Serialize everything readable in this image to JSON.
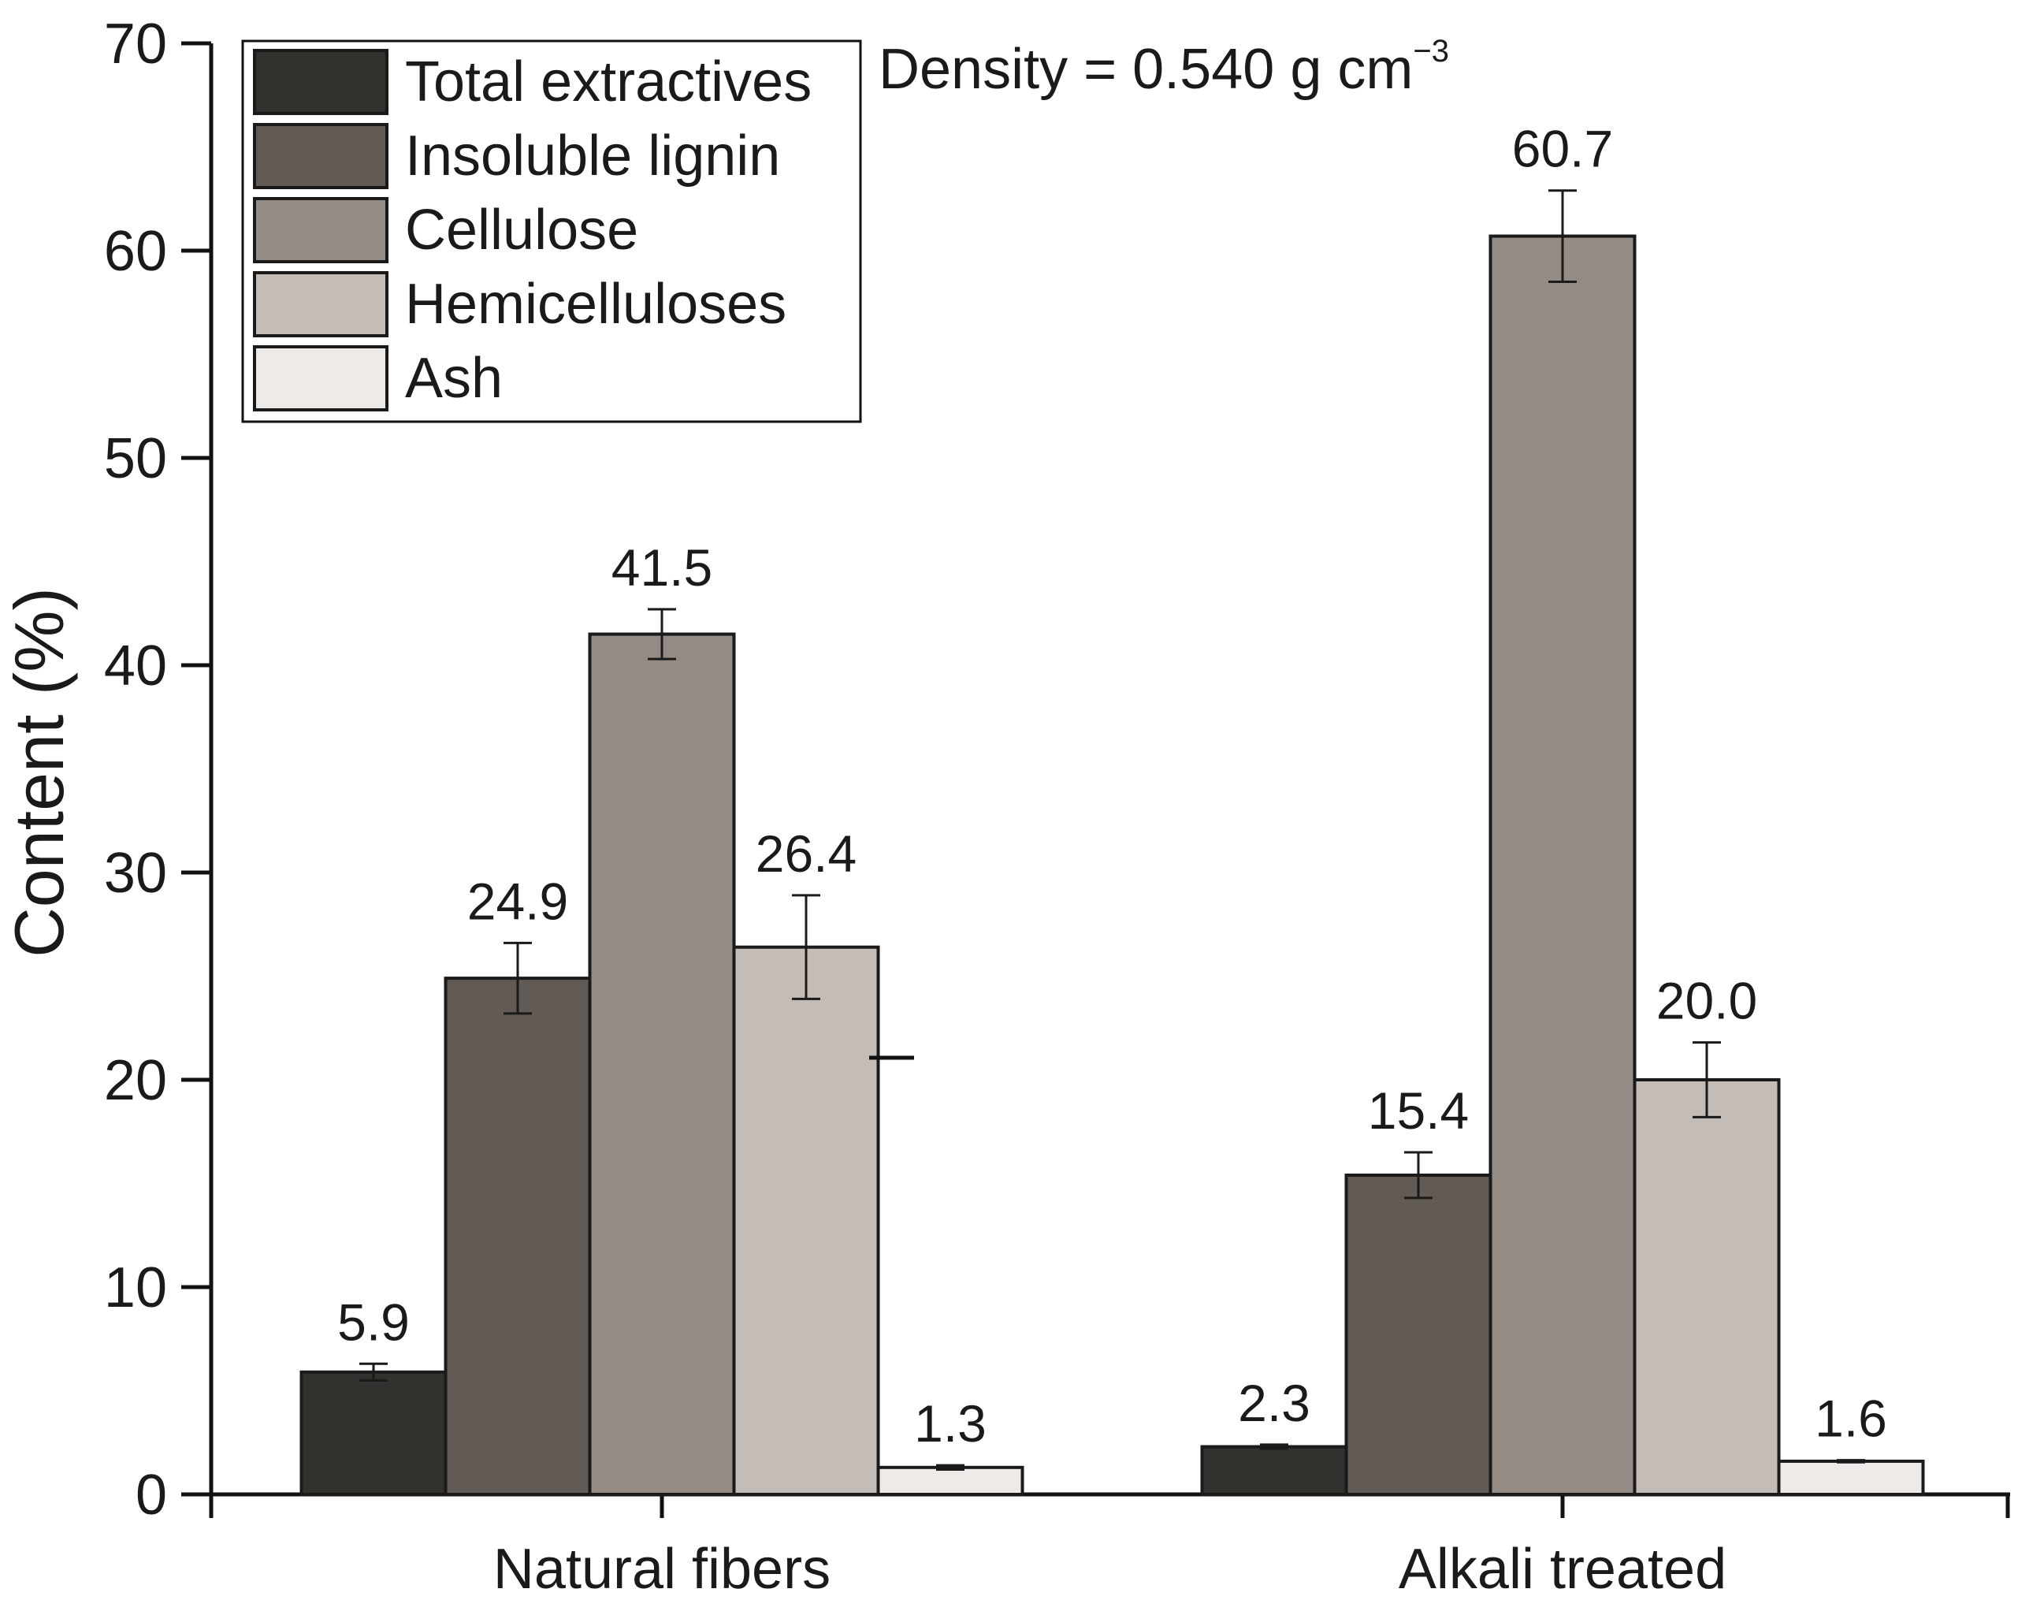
{
  "chart_data": {
    "type": "bar",
    "categories": [
      "Natural fibers",
      "Alkali treated"
    ],
    "series": [
      {
        "name": "Total extractives",
        "color": "#33312d",
        "values": [
          5.9,
          2.3
        ],
        "errors": [
          0.4,
          0.1
        ]
      },
      {
        "name": "Insoluble lignin",
        "color": "#625a54",
        "values": [
          24.9,
          15.4
        ],
        "errors": [
          1.7,
          1.1
        ]
      },
      {
        "name": "Cellulose",
        "color": "#948b85",
        "values": [
          41.5,
          60.7
        ],
        "errors": [
          1.2,
          2.2
        ]
      },
      {
        "name": "Hemicelluloses",
        "color": "#c4bcb7",
        "values": [
          26.4,
          20.0
        ],
        "errors": [
          2.5,
          1.8
        ]
      },
      {
        "name": "Ash",
        "color": "#eeeae8",
        "values": [
          1.3,
          1.6
        ],
        "errors": [
          0.1,
          0.05
        ]
      }
    ],
    "data_labels": [
      [
        "5.9",
        "2.3"
      ],
      [
        "24.9",
        "15.4"
      ],
      [
        "41.5",
        "60.7"
      ],
      [
        "26.4",
        "20.0"
      ],
      [
        "1.3",
        "1.6"
      ]
    ],
    "ylabel": "Content (%)",
    "xlabel": "",
    "ylim": [
      0,
      70
    ],
    "yticks": [
      "0",
      "10",
      "20",
      "30",
      "40",
      "50",
      "60",
      "70"
    ],
    "legend_position": "top-left",
    "grid": false,
    "annotation": {
      "text": "Density = 0.540 g cm",
      "superscript": "−3"
    }
  }
}
